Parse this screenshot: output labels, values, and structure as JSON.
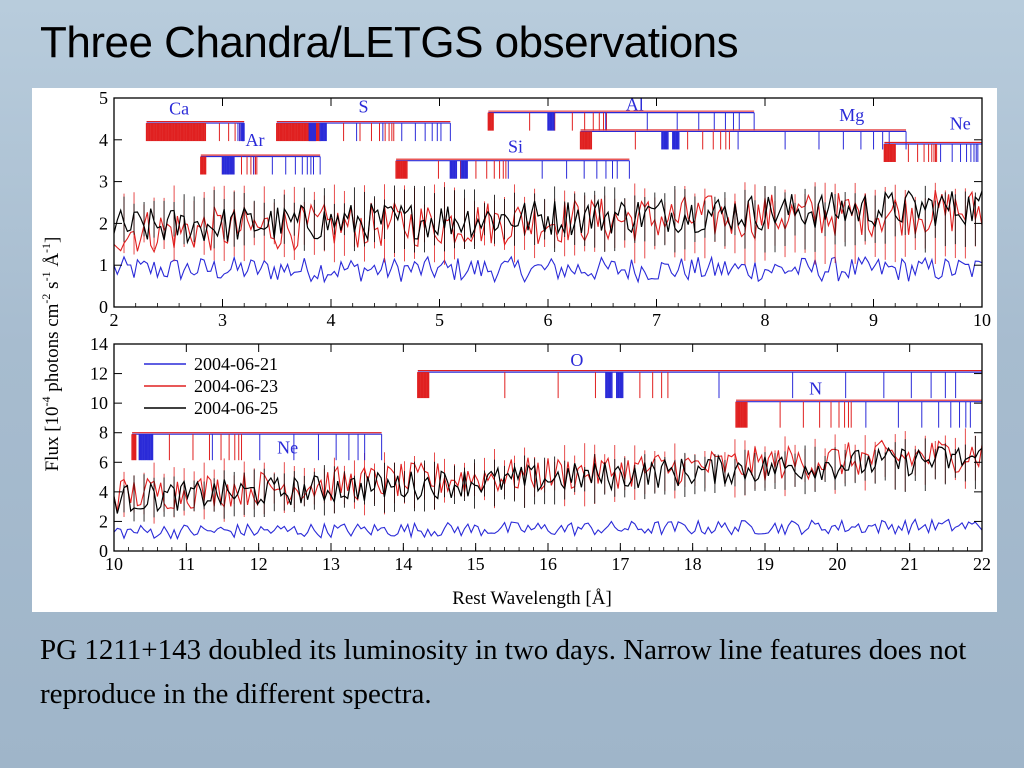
{
  "slide": {
    "title": "Three Chandra/LETGS observations",
    "caption": "PG 1211+143 doubled its luminosity in two days.  Narrow line features does not reproduce in the different spectra."
  },
  "colors": {
    "blue": "#2a2ad8",
    "red": "#e02020",
    "black": "#000000"
  },
  "chart_data": [
    {
      "type": "line",
      "panel": "top",
      "xlim": [
        2,
        10
      ],
      "ylim": [
        0,
        5
      ],
      "xticks": [
        2,
        3,
        4,
        5,
        6,
        7,
        8,
        9,
        10
      ],
      "yticks": [
        0,
        1,
        2,
        3,
        4,
        5
      ],
      "series": [
        {
          "date": "2004-06-21",
          "color": "blue",
          "mean_flux": 0.9,
          "noise": 0.3
        },
        {
          "date": "2004-06-23",
          "color": "red",
          "mean_flux": 1.8,
          "noise": 0.55
        },
        {
          "date": "2004-06-25",
          "color": "black",
          "mean_flux": 1.9,
          "noise": 0.45
        }
      ],
      "line_ladders": [
        {
          "label": "Ca",
          "y": 4.4,
          "start": 2.3,
          "end": 3.2,
          "red_end": 2.85,
          "blue": [],
          "labelx": 2.6,
          "labely": 4.6
        },
        {
          "label": "S",
          "y": 4.4,
          "start": 3.5,
          "end": 5.1,
          "red_end": 3.9,
          "blue": [
            3.8,
            3.9
          ],
          "labelx": 4.3,
          "labely": 4.65
        },
        {
          "label": "Ar",
          "y": 3.6,
          "start": 2.8,
          "end": 3.9,
          "red_end": 2.85,
          "blue": [
            3.0,
            3.05
          ],
          "labelx": 3.3,
          "labely": 3.85
        },
        {
          "label": "Si",
          "y": 3.5,
          "start": 4.6,
          "end": 6.75,
          "red_end": 4.7,
          "blue": [
            5.1,
            5.2
          ],
          "labelx": 5.7,
          "labely": 3.7
        },
        {
          "label": "Al",
          "y": 4.65,
          "start": 5.45,
          "end": 7.9,
          "red_end": 5.5,
          "blue": [
            6.0
          ],
          "labelx": 6.8,
          "labely": 4.7
        },
        {
          "label": "Mg",
          "y": 4.2,
          "start": 6.3,
          "end": 9.3,
          "red_end": 6.4,
          "blue": [
            7.05,
            7.15
          ],
          "labelx": 8.8,
          "labely": 4.45
        },
        {
          "label": "Ne",
          "y": 3.9,
          "start": 9.1,
          "end": 10.0,
          "red_end": 9.2,
          "blue": [],
          "labelx": 9.8,
          "labely": 4.25
        }
      ]
    },
    {
      "type": "line",
      "panel": "bottom",
      "xlim": [
        10,
        22
      ],
      "ylim": [
        0,
        14
      ],
      "xticks": [
        10,
        11,
        12,
        13,
        14,
        15,
        16,
        17,
        18,
        19,
        20,
        21,
        22
      ],
      "yticks": [
        0,
        2,
        4,
        6,
        8,
        10,
        12,
        14
      ],
      "series": [
        {
          "date": "2004-06-21",
          "color": "blue",
          "mean_flux": 1.3,
          "noise": 0.5
        },
        {
          "date": "2004-06-23",
          "color": "red",
          "mean_flux": 3.8,
          "noise": 1.2
        },
        {
          "date": "2004-06-25",
          "color": "black",
          "mean_flux": 3.5,
          "noise": 1.0
        }
      ],
      "legend": {
        "position": "top-left",
        "entries": [
          "2004-06-21",
          "2004-06-23",
          "2004-06-25"
        ]
      },
      "line_ladders": [
        {
          "label": "O",
          "y": 12.1,
          "start": 14.2,
          "end": 22.0,
          "red_end": 14.35,
          "blue": [
            16.8,
            16.95
          ],
          "labelx": 16.4,
          "labely": 12.5
        },
        {
          "label": "N",
          "y": 10.1,
          "start": 18.6,
          "end": 22.0,
          "red_end": 18.75,
          "blue": [],
          "labelx": 19.7,
          "labely": 10.6
        },
        {
          "label": "Ne",
          "y": 7.9,
          "start": 10.25,
          "end": 13.7,
          "red_end": 10.3,
          "blue": [
            10.35,
            10.45
          ],
          "labelx": 12.4,
          "labely": 6.6
        }
      ],
      "xlabel": "Rest Wavelength [Å]"
    }
  ],
  "shared_axis": {
    "ylabel_main": "Flux [10",
    "ylabel_exp1": "-4",
    "ylabel_mid": " photons cm",
    "ylabel_exp2": "-2",
    "ylabel_s": " s",
    "ylabel_exp3": "-1",
    "ylabel_A": " Å",
    "ylabel_exp4": "-1",
    "ylabel_end": "]"
  }
}
